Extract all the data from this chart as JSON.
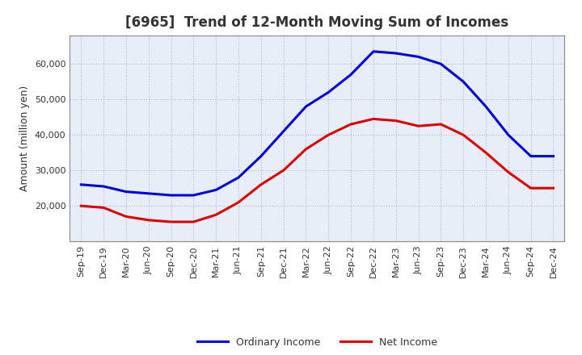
{
  "title": "[6965]  Trend of 12-Month Moving Sum of Incomes",
  "ylabel": "Amount (million yen)",
  "x_labels": [
    "Sep-19",
    "Dec-19",
    "Mar-20",
    "Jun-20",
    "Sep-20",
    "Dec-20",
    "Mar-21",
    "Jun-21",
    "Sep-21",
    "Dec-21",
    "Mar-22",
    "Jun-22",
    "Sep-22",
    "Dec-22",
    "Mar-23",
    "Jun-23",
    "Sep-23",
    "Dec-23",
    "Mar-24",
    "Jun-24",
    "Sep-24",
    "Dec-24"
  ],
  "ordinary_income": [
    26000,
    25500,
    24000,
    23500,
    23000,
    23000,
    24500,
    28000,
    34000,
    41000,
    48000,
    52000,
    57000,
    63500,
    63000,
    62000,
    60000,
    55000,
    48000,
    40000,
    34000,
    34000
  ],
  "net_income": [
    20000,
    19500,
    17000,
    16000,
    15500,
    15500,
    17500,
    21000,
    26000,
    30000,
    36000,
    40000,
    43000,
    44500,
    44000,
    42500,
    43000,
    40000,
    35000,
    29500,
    25000,
    25000
  ],
  "ordinary_color": "#0000dd",
  "net_color": "#dd0000",
  "ylim_min": 10000,
  "ylim_max": 68000,
  "yticks": [
    20000,
    30000,
    40000,
    50000,
    60000
  ],
  "background_color": "#ffffff",
  "plot_bg_color": "#e8eef8",
  "grid_color": "#b0b8cc",
  "line_width": 2.2,
  "legend_ordinary": "Ordinary Income",
  "legend_net": "Net Income",
  "title_fontsize": 12,
  "axis_fontsize": 9,
  "tick_fontsize": 8,
  "title_color": "#333333"
}
